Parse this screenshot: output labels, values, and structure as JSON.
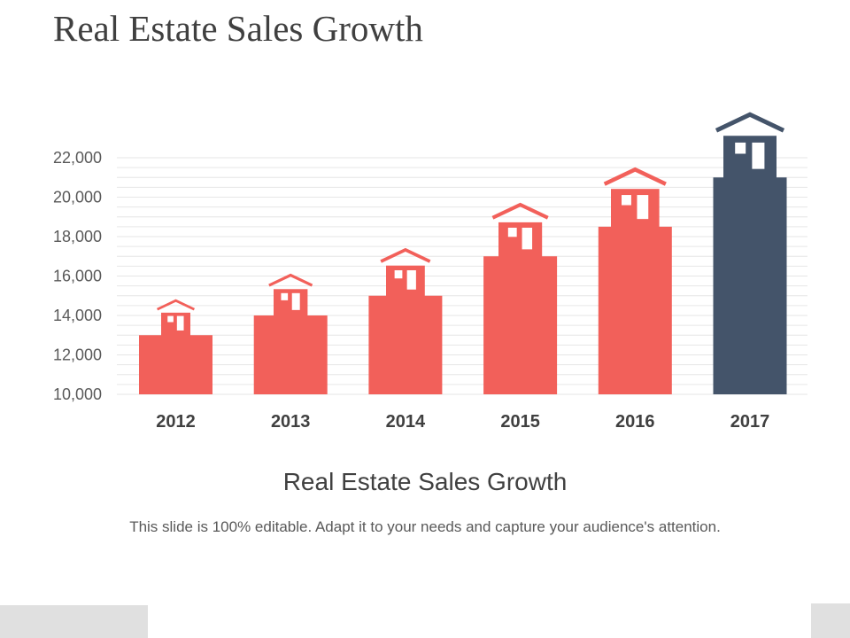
{
  "slide": {
    "title": "Real Estate Sales Growth",
    "caption_title": "Real Estate Sales Growth",
    "caption_text": "This slide is 100% editable. Adapt it to your needs and capture your audience's attention."
  },
  "colors": {
    "primary": "#f2605a",
    "highlight": "#44546a",
    "window": "#ffffff",
    "grid": "#e6e6e6"
  },
  "icons": {
    "bar_roof": "house-icon"
  },
  "chart_data": {
    "type": "bar",
    "title": "",
    "xlabel": "",
    "ylabel": "",
    "categories": [
      "2012",
      "2013",
      "2014",
      "2015",
      "2016",
      "2017"
    ],
    "values": [
      13000,
      14000,
      15000,
      17000,
      18500,
      21000
    ],
    "highlight_index": 5,
    "ylim": [
      10000,
      22000
    ],
    "yticks": [
      10000,
      12000,
      14000,
      16000,
      18000,
      20000,
      22000
    ],
    "ytick_labels": [
      "10,000",
      "12,000",
      "14,000",
      "16,000",
      "18,000",
      "20,000",
      "22,000"
    ],
    "grid": true,
    "legend": "none"
  }
}
